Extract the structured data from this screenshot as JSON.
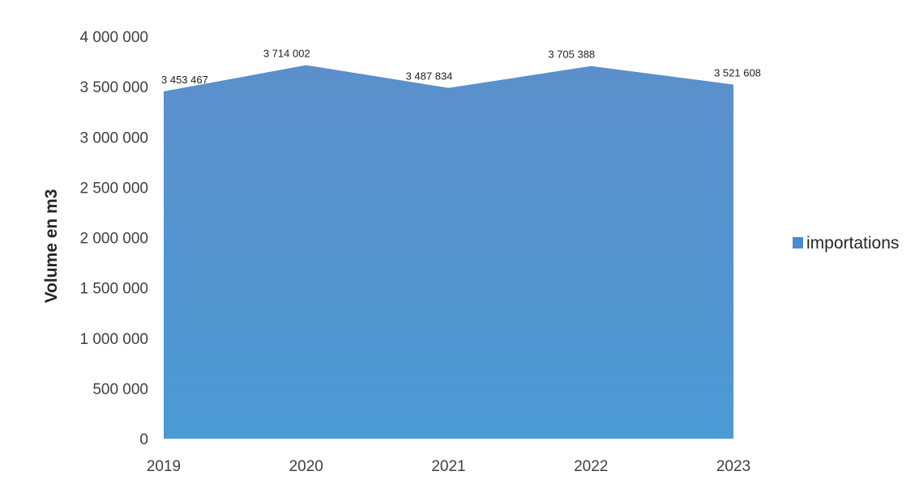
{
  "chart_data": {
    "type": "area",
    "categories": [
      "2019",
      "2020",
      "2021",
      "2022",
      "2023"
    ],
    "series": [
      {
        "name": "importations",
        "values": [
          3453467,
          3714002,
          3487834,
          3705388,
          3521608
        ],
        "data_labels": [
          "3 453 467",
          "3 714 002",
          "3 487 834",
          "3 705 388",
          "3 521 608"
        ]
      }
    ],
    "title": "",
    "xlabel": "",
    "ylabel": "Volume en m3",
    "ylim": [
      0,
      4000000
    ],
    "yticks": [
      0,
      500000,
      1000000,
      1500000,
      2000000,
      2500000,
      3000000,
      3500000,
      4000000
    ],
    "ytick_labels": [
      "0",
      "500 000",
      "1 000 000",
      "1 500 000",
      "2 000 000",
      "2 500 000",
      "3 000 000",
      "3 500 000",
      "4 000 000"
    ],
    "grid": false,
    "legend_position": "right",
    "colors": {
      "area_top": "#5b8fcc",
      "area_bottom": "#4b9ad4",
      "legend_swatch": "#4a8ccc"
    }
  }
}
